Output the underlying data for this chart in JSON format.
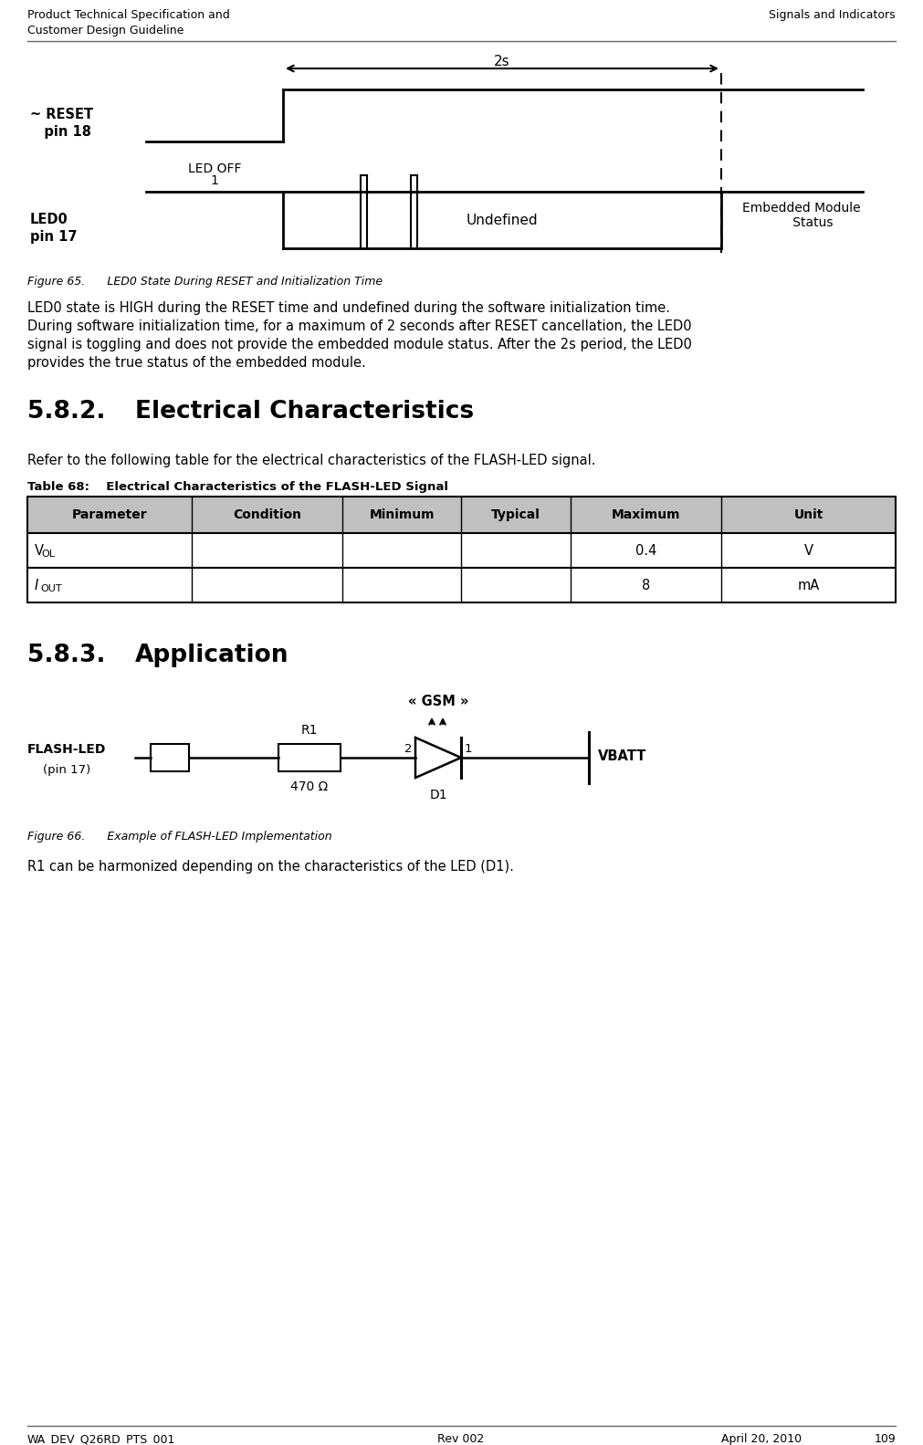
{
  "header_left": "Product Technical Specification and\nCustomer Design Guideline",
  "header_right": "Signals and Indicators",
  "footer_left": "WA_DEV_Q26RD_PTS_001",
  "footer_center": "Rev 002",
  "footer_right_date": "April 20, 2010",
  "footer_right_page": "109",
  "fig65_caption": "Figure 65.      LED0 State During RESET and Initialization Time",
  "para1_line1": "LED0 state is HIGH during the RESET time and undefined during the software initialization time.",
  "para1_line2": "During software initialization time, for a maximum of 2 seconds after RESET cancellation, the LED0",
  "para1_line3": "signal is toggling and does not provide the embedded module status. After the 2s period, the LED0",
  "para1_line4": "provides the true status of the embedded module.",
  "section_582": "5.8.2.",
  "section_582_title": "Electrical Characteristics",
  "para2": "Refer to the following table for the electrical characteristics of the FLASH-LED signal.",
  "table68_title": "Table 68:",
  "table68_subtitle": "  Electrical Characteristics of the FLASH-LED Signal",
  "table_headers": [
    "Parameter",
    "Condition",
    "Minimum",
    "Typical",
    "Maximum",
    "Unit"
  ],
  "section_583": "5.8.3.",
  "section_583_title": "Application",
  "fig66_caption": "Figure 66.      Example of FLASH-LED Implementation",
  "para3": "R1 can be harmonized depending on the characteristics of the LED (D1).",
  "bg_color": "#ffffff",
  "text_color": "#000000",
  "table_header_bg": "#c0c0c0",
  "table_border_color": "#000000",
  "diagram_line_color": "#000000"
}
